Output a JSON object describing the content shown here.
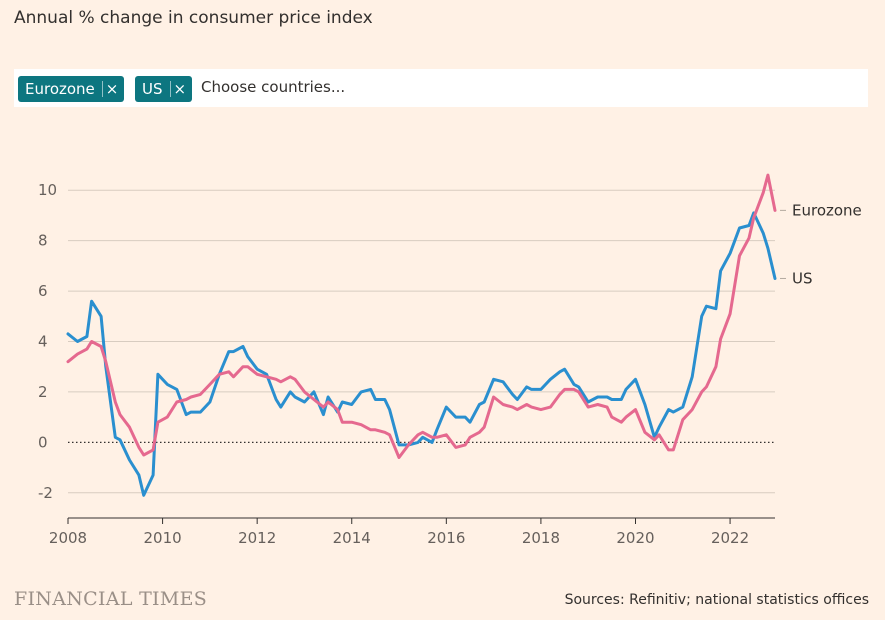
{
  "title": "Annual % change in consumer price index",
  "picker": {
    "chips": [
      {
        "label": "Eurozone",
        "remove_glyph": "×"
      },
      {
        "label": "US",
        "remove_glyph": "×"
      }
    ],
    "placeholder": "Choose countries..."
  },
  "brand": "FINANCIAL TIMES",
  "source": "Sources: Refinitiv; national statistics offices",
  "colors": {
    "background": "#fff1e5",
    "eurozone": "#e5698f",
    "us": "#2a8fcf",
    "chip": "#0d7680",
    "grid": "#d8ccc0"
  },
  "chart_data": {
    "type": "line",
    "title": "Annual % change in consumer price index",
    "xlabel": "",
    "ylabel": "",
    "xlim": [
      2008,
      2022.95
    ],
    "ylim": [
      -3,
      11
    ],
    "yticks": [
      -2,
      0,
      2,
      4,
      6,
      8,
      10
    ],
    "ytick_labels": [
      "-2",
      "0",
      "2",
      "4",
      "6",
      "8",
      "10"
    ],
    "xticks": [
      2008,
      2010,
      2012,
      2014,
      2016,
      2018,
      2020,
      2022
    ],
    "xtick_labels": [
      "2008",
      "2010",
      "2012",
      "2014",
      "2016",
      "2018",
      "2020",
      "2022"
    ],
    "zero_line": "dotted",
    "grid": true,
    "legend": "direct labels at line ends",
    "series": [
      {
        "name": "Eurozone",
        "color": "#e5698f",
        "x": [
          2008.0,
          2008.2,
          2008.4,
          2008.5,
          2008.7,
          2008.8,
          2009.0,
          2009.1,
          2009.3,
          2009.5,
          2009.6,
          2009.8,
          2009.9,
          2010.1,
          2010.3,
          2010.5,
          2010.6,
          2010.8,
          2011.0,
          2011.2,
          2011.4,
          2011.5,
          2011.7,
          2011.8,
          2012.0,
          2012.2,
          2012.4,
          2012.5,
          2012.7,
          2012.8,
          2013.0,
          2013.2,
          2013.4,
          2013.5,
          2013.7,
          2013.8,
          2014.0,
          2014.2,
          2014.4,
          2014.5,
          2014.7,
          2014.8,
          2015.0,
          2015.2,
          2015.4,
          2015.5,
          2015.7,
          2015.8,
          2016.0,
          2016.2,
          2016.4,
          2016.5,
          2016.7,
          2016.8,
          2017.0,
          2017.2,
          2017.4,
          2017.5,
          2017.7,
          2017.8,
          2018.0,
          2018.2,
          2018.4,
          2018.5,
          2018.7,
          2018.8,
          2019.0,
          2019.2,
          2019.4,
          2019.5,
          2019.7,
          2019.8,
          2020.0,
          2020.2,
          2020.4,
          2020.5,
          2020.7,
          2020.8,
          2021.0,
          2021.2,
          2021.4,
          2021.5,
          2021.7,
          2021.8,
          2022.0,
          2022.2,
          2022.4,
          2022.5,
          2022.7,
          2022.8,
          2022.95
        ],
        "values": [
          3.2,
          3.5,
          3.7,
          4.0,
          3.8,
          3.2,
          1.6,
          1.1,
          0.6,
          -0.2,
          -0.5,
          -0.3,
          0.8,
          1.0,
          1.6,
          1.7,
          1.8,
          1.9,
          2.3,
          2.7,
          2.8,
          2.6,
          3.0,
          3.0,
          2.7,
          2.6,
          2.5,
          2.4,
          2.6,
          2.5,
          2.0,
          1.7,
          1.4,
          1.6,
          1.3,
          0.8,
          0.8,
          0.7,
          0.5,
          0.5,
          0.4,
          0.3,
          -0.6,
          -0.1,
          0.3,
          0.4,
          0.2,
          0.2,
          0.3,
          -0.2,
          -0.1,
          0.2,
          0.4,
          0.6,
          1.8,
          1.5,
          1.4,
          1.3,
          1.5,
          1.4,
          1.3,
          1.4,
          1.9,
          2.1,
          2.1,
          2.0,
          1.4,
          1.5,
          1.4,
          1.0,
          0.8,
          1.0,
          1.3,
          0.4,
          0.1,
          0.3,
          -0.3,
          -0.3,
          0.9,
          1.3,
          2.0,
          2.2,
          3.0,
          4.1,
          5.1,
          7.4,
          8.1,
          8.9,
          9.9,
          10.6,
          9.2
        ]
      },
      {
        "name": "US",
        "color": "#2a8fcf",
        "x": [
          2008.0,
          2008.2,
          2008.4,
          2008.5,
          2008.7,
          2008.8,
          2009.0,
          2009.1,
          2009.3,
          2009.5,
          2009.6,
          2009.8,
          2009.9,
          2010.1,
          2010.3,
          2010.5,
          2010.6,
          2010.8,
          2011.0,
          2011.2,
          2011.4,
          2011.5,
          2011.7,
          2011.8,
          2012.0,
          2012.2,
          2012.4,
          2012.5,
          2012.7,
          2012.8,
          2013.0,
          2013.2,
          2013.4,
          2013.5,
          2013.7,
          2013.8,
          2014.0,
          2014.2,
          2014.4,
          2014.5,
          2014.7,
          2014.8,
          2015.0,
          2015.2,
          2015.4,
          2015.5,
          2015.7,
          2015.8,
          2016.0,
          2016.2,
          2016.4,
          2016.5,
          2016.7,
          2016.8,
          2017.0,
          2017.2,
          2017.4,
          2017.5,
          2017.7,
          2017.8,
          2018.0,
          2018.2,
          2018.4,
          2018.5,
          2018.7,
          2018.8,
          2019.0,
          2019.2,
          2019.4,
          2019.5,
          2019.7,
          2019.8,
          2020.0,
          2020.2,
          2020.4,
          2020.5,
          2020.7,
          2020.8,
          2021.0,
          2021.2,
          2021.4,
          2021.5,
          2021.7,
          2021.8,
          2022.0,
          2022.2,
          2022.4,
          2022.5,
          2022.7,
          2022.8,
          2022.95
        ],
        "values": [
          4.3,
          4.0,
          4.2,
          5.6,
          5.0,
          3.0,
          0.2,
          0.1,
          -0.7,
          -1.3,
          -2.1,
          -1.3,
          2.7,
          2.3,
          2.1,
          1.1,
          1.2,
          1.2,
          1.6,
          2.7,
          3.6,
          3.6,
          3.8,
          3.4,
          2.9,
          2.7,
          1.7,
          1.4,
          2.0,
          1.8,
          1.6,
          2.0,
          1.1,
          1.8,
          1.2,
          1.6,
          1.5,
          2.0,
          2.1,
          1.7,
          1.7,
          1.3,
          -0.1,
          -0.1,
          0.0,
          0.2,
          0.0,
          0.5,
          1.4,
          1.0,
          1.0,
          0.8,
          1.5,
          1.6,
          2.5,
          2.4,
          1.9,
          1.7,
          2.2,
          2.1,
          2.1,
          2.5,
          2.8,
          2.9,
          2.3,
          2.2,
          1.6,
          1.8,
          1.8,
          1.7,
          1.7,
          2.1,
          2.5,
          1.5,
          0.2,
          0.6,
          1.3,
          1.2,
          1.4,
          2.6,
          5.0,
          5.4,
          5.3,
          6.8,
          7.5,
          8.5,
          8.6,
          9.1,
          8.3,
          7.7,
          6.5
        ]
      }
    ],
    "end_labels": [
      {
        "text": "Eurozone",
        "series": "Eurozone",
        "y": 9.2
      },
      {
        "text": "US",
        "series": "US",
        "y": 6.5
      }
    ]
  }
}
